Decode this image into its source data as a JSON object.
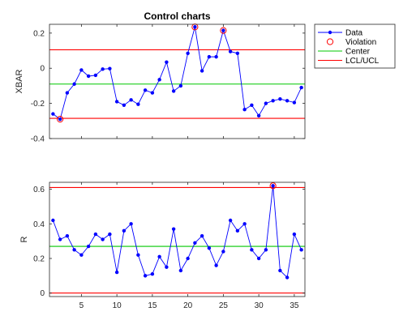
{
  "chart_data": [
    {
      "type": "line",
      "title": "Control charts",
      "xlabel": "",
      "ylabel": "XBAR",
      "xlim": [
        0.5,
        36.5
      ],
      "ylim": [
        -0.4,
        0.25
      ],
      "yticks": [
        -0.4,
        -0.2,
        0,
        0.2
      ],
      "ytick_labels": [
        "-0.4",
        "-0.2",
        "0",
        "0.2"
      ],
      "center": -0.09,
      "lcl": -0.285,
      "ucl": 0.105,
      "x": [
        1,
        2,
        3,
        4,
        5,
        6,
        7,
        8,
        9,
        10,
        11,
        12,
        13,
        14,
        15,
        16,
        17,
        18,
        19,
        20,
        21,
        22,
        23,
        24,
        25,
        26,
        27,
        28,
        29,
        30,
        31,
        32,
        33,
        34,
        35,
        36
      ],
      "values": [
        -0.26,
        -0.29,
        -0.14,
        -0.09,
        -0.01,
        -0.045,
        -0.04,
        -0.005,
        -0.002,
        -0.19,
        -0.21,
        -0.18,
        -0.205,
        -0.125,
        -0.14,
        -0.065,
        0.035,
        -0.13,
        -0.1,
        0.085,
        0.235,
        -0.015,
        0.065,
        0.065,
        0.215,
        0.095,
        0.085,
        -0.235,
        -0.21,
        -0.27,
        -0.2,
        -0.185,
        -0.175,
        -0.185,
        -0.195,
        -0.11
      ],
      "violation_x": [
        2,
        21,
        25
      ],
      "grid": false,
      "colors": {
        "data": "#0000ff",
        "violation": "#ff0000",
        "center": "#00c800",
        "limits": "#ff0000"
      }
    },
    {
      "type": "line",
      "title": "",
      "xlabel": "",
      "ylabel": "R",
      "xlim": [
        0.5,
        36.5
      ],
      "ylim": [
        -0.02,
        0.64
      ],
      "yticks": [
        0,
        0.2,
        0.4,
        0.6
      ],
      "ytick_labels": [
        "0",
        "0.2",
        "0.4",
        "0.6"
      ],
      "xticks": [
        5,
        10,
        15,
        20,
        25,
        30,
        35
      ],
      "xtick_labels": [
        "5",
        "10",
        "15",
        "20",
        "25",
        "30",
        "35"
      ],
      "center": 0.27,
      "lcl": 0,
      "ucl": 0.61,
      "x": [
        1,
        2,
        3,
        4,
        5,
        6,
        7,
        8,
        9,
        10,
        11,
        12,
        13,
        14,
        15,
        16,
        17,
        18,
        19,
        20,
        21,
        22,
        23,
        24,
        25,
        26,
        27,
        28,
        29,
        30,
        31,
        32,
        33,
        34,
        35,
        36
      ],
      "values": [
        0.42,
        0.31,
        0.33,
        0.25,
        0.22,
        0.27,
        0.34,
        0.31,
        0.34,
        0.12,
        0.36,
        0.4,
        0.22,
        0.1,
        0.11,
        0.21,
        0.15,
        0.37,
        0.13,
        0.2,
        0.29,
        0.33,
        0.26,
        0.16,
        0.24,
        0.42,
        0.36,
        0.4,
        0.25,
        0.2,
        0.25,
        0.62,
        0.13,
        0.09,
        0.34,
        0.25
      ],
      "violation_x": [
        32
      ],
      "grid": false,
      "colors": {
        "data": "#0000ff",
        "violation": "#ff0000",
        "center": "#00c800",
        "limits": "#ff0000"
      }
    }
  ],
  "legend": {
    "placement": "top-right outside",
    "items": [
      {
        "label": "Data",
        "kind": "data"
      },
      {
        "label": "Violation",
        "kind": "violation"
      },
      {
        "label": "Center",
        "kind": "center"
      },
      {
        "label": "LCL/UCL",
        "kind": "limits"
      }
    ]
  }
}
